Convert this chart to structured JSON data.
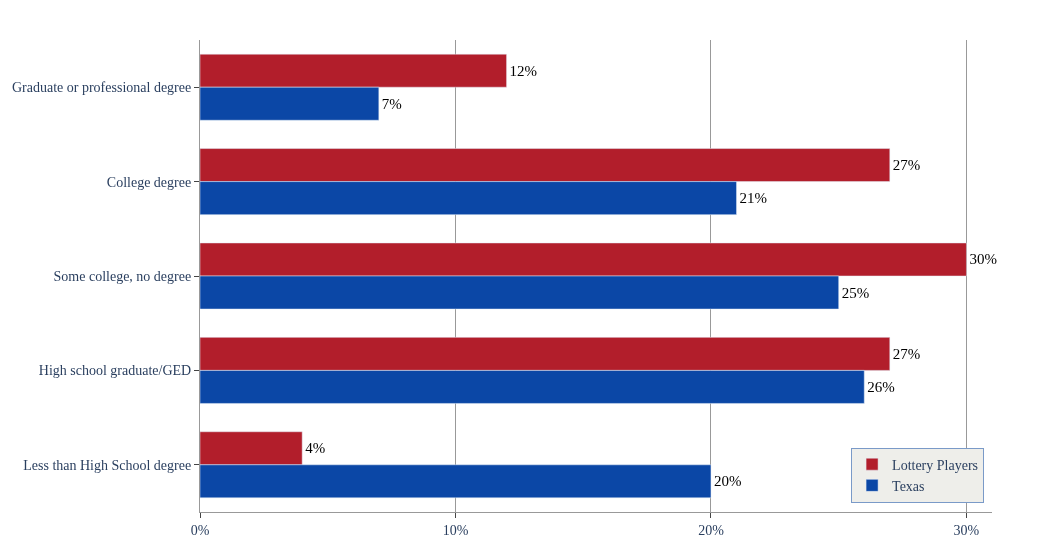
{
  "chart_data": {
    "type": "bar",
    "orientation": "horizontal",
    "categories": [
      "Graduate or professional degree",
      "College degree",
      "Some college, no degree",
      "High school graduate/GED",
      "Less than High School degree"
    ],
    "series": [
      {
        "name": "Lottery Players",
        "color": "#b21e2b",
        "values": [
          12,
          27,
          30,
          27,
          4
        ],
        "value_labels": [
          "12%",
          "27%",
          "30%",
          "27%",
          "4%"
        ]
      },
      {
        "name": "Texas",
        "color": "#0b47a6",
        "values": [
          7,
          21,
          25,
          26,
          20
        ],
        "value_labels": [
          "7%",
          "21%",
          "25%",
          "26%",
          "20%"
        ]
      }
    ],
    "xlim": [
      0,
      31
    ],
    "xticks": [
      {
        "value": 0,
        "label": "0%"
      },
      {
        "value": 10,
        "label": "10%"
      },
      {
        "value": 20,
        "label": "20%"
      },
      {
        "value": 30,
        "label": "30%"
      }
    ],
    "grid": "x",
    "legend": "bottom right"
  }
}
